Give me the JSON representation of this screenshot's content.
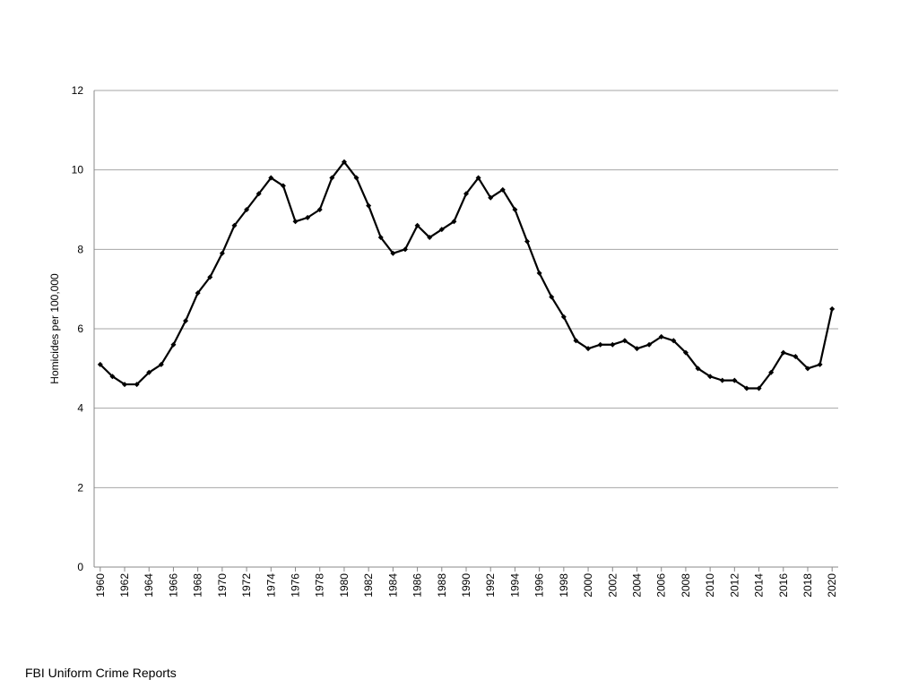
{
  "chart_data": {
    "type": "line",
    "y_label": "Homicides per 100,000",
    "source": "FBI Uniform Crime Reports",
    "x": [
      1960,
      1961,
      1962,
      1963,
      1964,
      1965,
      1966,
      1967,
      1968,
      1969,
      1970,
      1971,
      1972,
      1973,
      1974,
      1975,
      1976,
      1977,
      1978,
      1979,
      1980,
      1981,
      1982,
      1983,
      1984,
      1985,
      1986,
      1987,
      1988,
      1989,
      1990,
      1991,
      1992,
      1993,
      1994,
      1995,
      1996,
      1997,
      1998,
      1999,
      2000,
      2001,
      2002,
      2003,
      2004,
      2005,
      2006,
      2007,
      2008,
      2009,
      2010,
      2011,
      2012,
      2013,
      2014,
      2015,
      2016,
      2017,
      2018,
      2019,
      2020
    ],
    "values": [
      5.1,
      4.8,
      4.6,
      4.6,
      4.9,
      5.1,
      5.6,
      6.2,
      6.9,
      7.3,
      7.9,
      8.6,
      9.0,
      9.4,
      9.8,
      9.6,
      8.7,
      8.8,
      9.0,
      9.8,
      10.2,
      9.8,
      9.1,
      8.3,
      7.9,
      8.0,
      8.6,
      8.3,
      8.5,
      8.7,
      9.4,
      9.8,
      9.3,
      9.5,
      9.0,
      8.2,
      7.4,
      6.8,
      6.3,
      5.7,
      5.5,
      5.6,
      5.6,
      5.7,
      5.5,
      5.6,
      5.8,
      5.7,
      5.4,
      5.0,
      4.8,
      4.7,
      4.7,
      4.5,
      4.5,
      4.9,
      5.4,
      5.3,
      5.0,
      5.1,
      6.5
    ],
    "color": "#000000",
    "xlim": [
      1959.5,
      2020.5
    ],
    "xticks": [
      1960,
      1962,
      1964,
      1966,
      1968,
      1970,
      1972,
      1974,
      1976,
      1978,
      1980,
      1982,
      1984,
      1986,
      1988,
      1990,
      1992,
      1994,
      1996,
      1998,
      2000,
      2002,
      2004,
      2006,
      2008,
      2010,
      2012,
      2014,
      2016,
      2018,
      2020
    ],
    "ylim": [
      0,
      12
    ],
    "yticks": [
      0,
      2,
      4,
      6,
      8,
      10,
      12
    ],
    "grid": true
  }
}
